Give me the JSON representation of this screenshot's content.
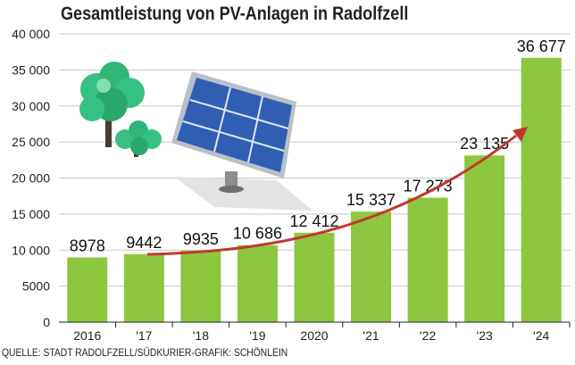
{
  "chart_data": {
    "type": "bar",
    "title": "Gesamtleistung von PV-Anlagen in Radolfzell",
    "categories": [
      "2016",
      "'17",
      "'18",
      "'19",
      "2020",
      "'21",
      "'22",
      "'23",
      "'24"
    ],
    "values": [
      8978,
      9442,
      9935,
      10686,
      12412,
      15337,
      17273,
      23135,
      36677
    ],
    "value_labels": [
      "8978",
      "9442",
      "9935",
      "10 686",
      "12 412",
      "15 337",
      "17 273",
      "23 135",
      "36 677"
    ],
    "ytick_values": [
      0,
      5000,
      10000,
      15000,
      20000,
      25000,
      30000,
      35000,
      40000
    ],
    "ytick_labels": [
      "0",
      "5000",
      "10 000",
      "15 000",
      "20 000",
      "25 000",
      "30 000",
      "35 000",
      "40 000"
    ],
    "ylim": [
      0,
      40000
    ],
    "xlabel": "",
    "ylabel": "",
    "grid": "horizontal",
    "source": "QUELLE: STADT RADOLFZELL/SÜDKURIER-GRAFIK: SCHÖNLEIN",
    "colors": {
      "bar": "#8dc63f",
      "grid": "#c8c8c8",
      "trend": "#c0392b"
    }
  }
}
